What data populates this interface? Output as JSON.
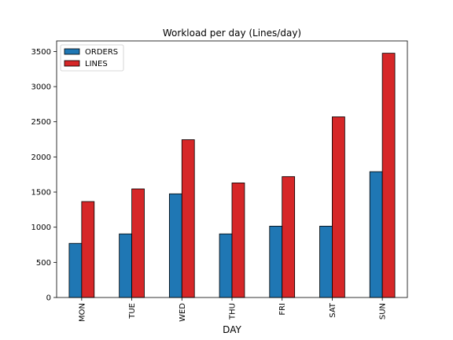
{
  "chart_data": {
    "type": "bar",
    "title": "Workload per day (Lines/day)",
    "xlabel": "DAY",
    "ylabel": "",
    "categories": [
      "MON",
      "TUE",
      "WED",
      "THU",
      "FRI",
      "SAT",
      "SUN"
    ],
    "series": [
      {
        "name": "ORDERS",
        "color": "#1f77b4",
        "values": [
          770,
          905,
          1475,
          905,
          1015,
          1015,
          1790
        ]
      },
      {
        "name": "LINES",
        "color": "#d62728",
        "values": [
          1365,
          1545,
          2245,
          1630,
          1720,
          2570,
          3475
        ]
      }
    ],
    "ylim": [
      0,
      3650
    ],
    "yticks": [
      0,
      500,
      1000,
      1500,
      2000,
      2500,
      3000,
      3500
    ],
    "ytick_labels": [
      "0",
      "500",
      "1000",
      "1500",
      "2000",
      "2500",
      "3000",
      "3500"
    ],
    "legend_position": "upper-left",
    "grid": false
  }
}
